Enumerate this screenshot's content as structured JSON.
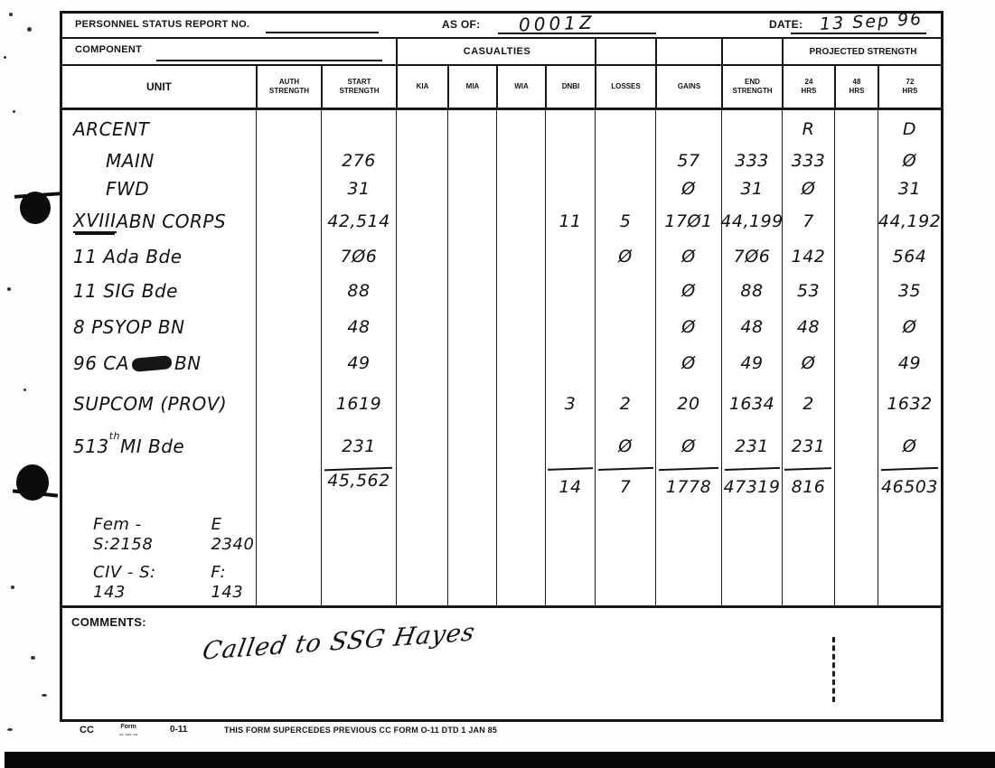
{
  "form_header": {
    "report_no_label": "PERSONNEL STATUS REPORT NO.",
    "as_of_label": "AS OF:",
    "as_of_value": "0001Z",
    "date_label": "DATE:",
    "date_value": "13 Sep 96"
  },
  "band2": {
    "component_label": "COMPONENT",
    "casualties_label": "CASUALTIES",
    "projected_strength_label": "PROJECTED STRENGTH"
  },
  "table": {
    "columns": [
      {
        "line1": "UNIT"
      },
      {
        "line1": "AUTH",
        "line2": "STRENGTH"
      },
      {
        "line1": "START",
        "line2": "STRENGTH"
      },
      {
        "line1": "KIA"
      },
      {
        "line1": "MIA"
      },
      {
        "line1": "WIA"
      },
      {
        "line1": "DNBI"
      },
      {
        "line1": "LOSSES"
      },
      {
        "line1": "GAINS"
      },
      {
        "line1": "END",
        "line2": "STRENGTH"
      },
      {
        "line1": "24",
        "line2": "HRS"
      },
      {
        "line1": "48",
        "line2": "HRS"
      },
      {
        "line1": "72",
        "line2": "HRS"
      }
    ],
    "rows": [
      {
        "unit": [
          {
            "text": "ARCENT"
          }
        ],
        "h24": "R",
        "h72": "D"
      },
      {
        "indent": true,
        "unit": [
          {
            "text": "MAIN"
          }
        ],
        "start": "276",
        "gains": "57",
        "end": "333",
        "h24": "333",
        "h72": "Ø"
      },
      {
        "indent": true,
        "unit": [
          {
            "text": "FWD"
          }
        ],
        "start": "31",
        "gains": "Ø",
        "end": "31",
        "h24": "Ø",
        "h72": "31"
      },
      {
        "unit": [
          {
            "text": "XVIII",
            "deco": "underline"
          },
          {
            "text": " ABN CORPS"
          }
        ],
        "start": "42,514",
        "dnbi": "11",
        "losses": "5",
        "gains": "17Ø1",
        "end": "44,199",
        "h24": "7",
        "h72": "44,192"
      },
      {
        "unit": [
          {
            "text": "11 Ada Bde"
          }
        ],
        "start": "7Ø6",
        "losses": "Ø",
        "gains": "Ø",
        "end": "7Ø6",
        "h24": "142",
        "h72": "564"
      },
      {
        "unit": [
          {
            "text": "11 SIG Bde"
          }
        ],
        "start": "88",
        "gains": "Ø",
        "end": "88",
        "h24": "53",
        "h72": "35"
      },
      {
        "unit": [
          {
            "text": "8 PSYOP BN"
          }
        ],
        "start": "48",
        "gains": "Ø",
        "end": "48",
        "h24": "48",
        "h72": "Ø"
      },
      {
        "unit": [
          {
            "text": "96 CA "
          },
          {
            "deco": "scribble"
          },
          {
            "text": " BN"
          }
        ],
        "start": "49",
        "gains": "Ø",
        "end": "49",
        "h24": "Ø",
        "h72": "49"
      },
      {
        "unit": [
          {
            "text": "SUPCOM (PROV)"
          }
        ],
        "start": "1619",
        "dnbi": "3",
        "losses": "2",
        "gains": "20",
        "end": "1634",
        "h24": "2",
        "h72": "1632"
      },
      {
        "unit": [
          {
            "text": "513"
          },
          {
            "text": "th",
            "deco": "sup"
          },
          {
            "text": " MI Bde"
          }
        ],
        "start": "231",
        "losses": "Ø",
        "gains": "Ø",
        "end": "231",
        "h24": "231",
        "h72": "Ø"
      },
      {
        "total": true,
        "start": "45,562",
        "dnbi": "14",
        "losses": "7",
        "gains": "1778",
        "end": "47319",
        "h24": "816",
        "h72": "46503"
      },
      {
        "note": true,
        "unit": [
          {
            "text": "Fem - S:2158"
          },
          {
            "br": true
          },
          {
            "text": "E 2340",
            "deco": "indent"
          }
        ]
      },
      {
        "note": true,
        "unit": [
          {
            "text": "CIV - S: 143"
          },
          {
            "br": true
          },
          {
            "text": "F: 143",
            "deco": "indent"
          }
        ]
      }
    ]
  },
  "comments": {
    "label": "COMMENTS:",
    "text": "Called to SSG Hayes"
  },
  "footer": {
    "cc": "CC",
    "form_word": "Form",
    "form_dashes": "-- --- --",
    "form_number": "0-11",
    "supersede_text": "THIS FORM SUPERCEDES PREVIOUS CC FORM O-11 DTD 1 JAN 85"
  }
}
